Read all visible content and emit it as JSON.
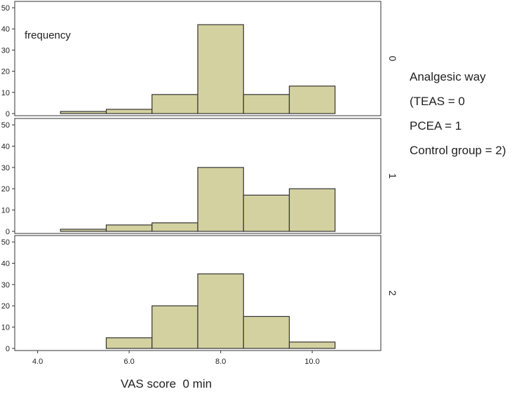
{
  "chart_data": {
    "type": "bar",
    "subtype": "faceted-histogram",
    "xlabel": "VAS score  0 min",
    "ylabel": "frequency",
    "xlim": [
      3.5,
      11.5
    ],
    "xticks": [
      "4.0",
      "6.0",
      "8.0",
      "10.0"
    ],
    "xtick_values": [
      4,
      6,
      8,
      10
    ],
    "ylim": [
      0,
      53
    ],
    "yticks": [
      "0",
      "10",
      "20",
      "30",
      "40",
      "50"
    ],
    "ytick_values": [
      0,
      10,
      20,
      30,
      40,
      50
    ],
    "bar_color": "#d4d1a0",
    "bin_width": 1,
    "bin_centers": [
      5,
      6,
      7,
      8,
      9,
      10
    ],
    "legend": {
      "lines": [
        "Analgesic way",
        "(TEAS = 0",
        "PCEA = 1",
        "Control group = 2)"
      ]
    },
    "facets": [
      {
        "label": "0",
        "values": [
          1,
          2,
          9,
          42,
          9,
          13
        ]
      },
      {
        "label": "1",
        "values": [
          1,
          3,
          4,
          30,
          17,
          20
        ]
      },
      {
        "label": "2",
        "values": [
          0,
          5,
          20,
          35,
          15,
          3
        ]
      }
    ]
  }
}
